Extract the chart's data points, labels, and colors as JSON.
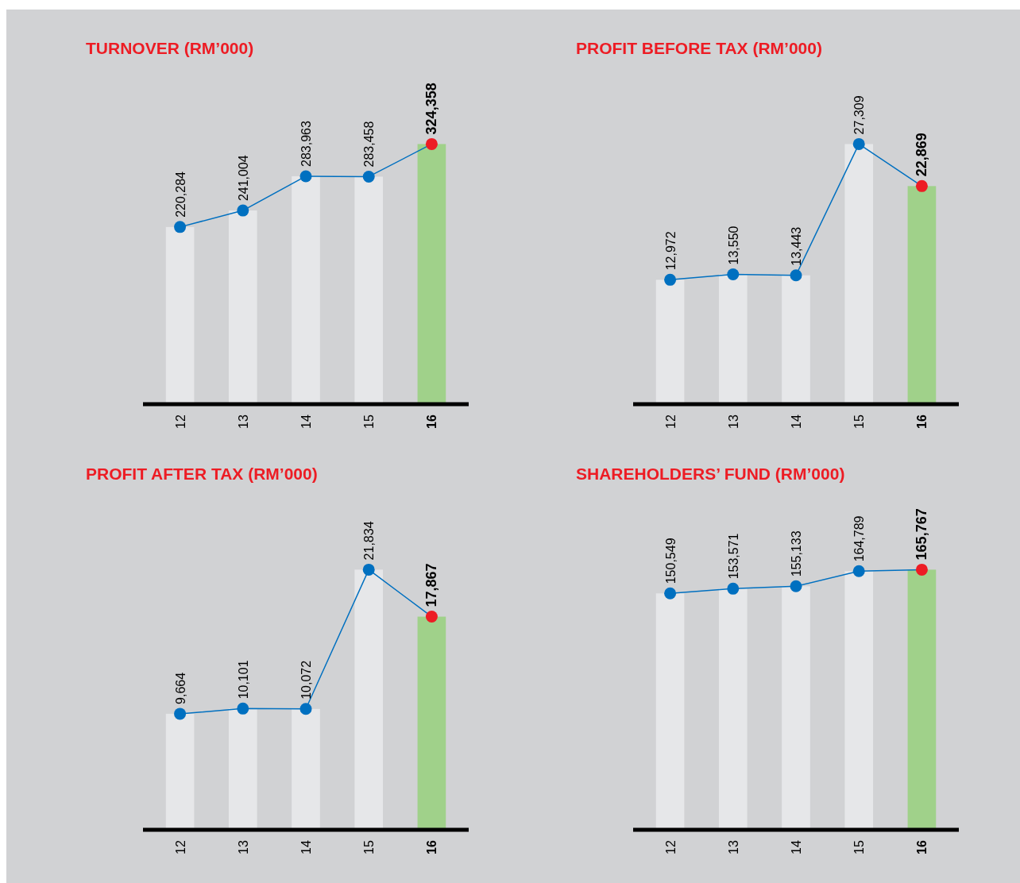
{
  "chart_data": [
    {
      "type": "bar",
      "title": "TURNOVER (RM’000)",
      "categories": [
        "12",
        "13",
        "14",
        "15",
        "16"
      ],
      "series": [
        {
          "colors": [
            "#e6e7e9",
            "#e6e7e9",
            "#e6e7e9",
            "#e6e7e9",
            "#a0d18a"
          ],
          "values": [
            220284,
            241004,
            283963,
            283458,
            324358
          ]
        },
        {
          "type": "line",
          "color": "#0070c0",
          "colors": [
            "#0070c0",
            "#0070c0",
            "#0070c0",
            "#0070c0",
            "#ed1c24"
          ],
          "marker": "circle",
          "values": [
            220284,
            241004,
            283963,
            283458,
            324358
          ],
          "value_labels": [
            "220,284",
            "241,004",
            "283,963",
            "283,458",
            "324,358"
          ]
        }
      ]
    },
    {
      "type": "bar",
      "title": "PROFIT BEFORE TAX (RM’000)",
      "categories": [
        "12",
        "13",
        "14",
        "15",
        "16"
      ],
      "series": [
        {
          "colors": [
            "#e6e7e9",
            "#e6e7e9",
            "#e6e7e9",
            "#e6e7e9",
            "#a0d18a"
          ],
          "values": [
            12972,
            13550,
            13443,
            27309,
            22869
          ]
        },
        {
          "type": "line",
          "color": "#0070c0",
          "colors": [
            "#0070c0",
            "#0070c0",
            "#0070c0",
            "#0070c0",
            "#ed1c24"
          ],
          "marker": "circle",
          "values": [
            12972,
            13550,
            13443,
            27309,
            22869
          ],
          "value_labels": [
            "12,972",
            "13,550",
            "13,443",
            "27,309",
            "22,869"
          ]
        }
      ]
    },
    {
      "type": "bar",
      "title": "PROFIT AFTER TAX (RM’000)",
      "categories": [
        "12",
        "13",
        "14",
        "15",
        "16"
      ],
      "series": [
        {
          "colors": [
            "#e6e7e9",
            "#e6e7e9",
            "#e6e7e9",
            "#e6e7e9",
            "#a0d18a"
          ],
          "values": [
            9664,
            10101,
            10072,
            21834,
            17867
          ]
        },
        {
          "type": "line",
          "color": "#0070c0",
          "colors": [
            "#0070c0",
            "#0070c0",
            "#0070c0",
            "#0070c0",
            "#ed1c24"
          ],
          "marker": "circle",
          "values": [
            9664,
            10101,
            10072,
            21834,
            17867
          ],
          "value_labels": [
            "9,664",
            "10,101",
            "10,072",
            "21,834",
            "17,867"
          ]
        }
      ]
    },
    {
      "type": "bar",
      "title": "SHAREHOLDERS’ FUND (RM’000)",
      "categories": [
        "12",
        "13",
        "14",
        "15",
        "16"
      ],
      "series": [
        {
          "colors": [
            "#e6e7e9",
            "#e6e7e9",
            "#e6e7e9",
            "#e6e7e9",
            "#a0d18a"
          ],
          "values": [
            150549,
            153571,
            155133,
            164789,
            165767
          ]
        },
        {
          "type": "line",
          "color": "#0070c0",
          "colors": [
            "#0070c0",
            "#0070c0",
            "#0070c0",
            "#0070c0",
            "#ed1c24"
          ],
          "marker": "circle",
          "values": [
            150549,
            153571,
            155133,
            164789,
            165767
          ],
          "value_labels": [
            "150,549",
            "153,571",
            "155,133",
            "164,789",
            "165,767"
          ]
        }
      ]
    }
  ]
}
